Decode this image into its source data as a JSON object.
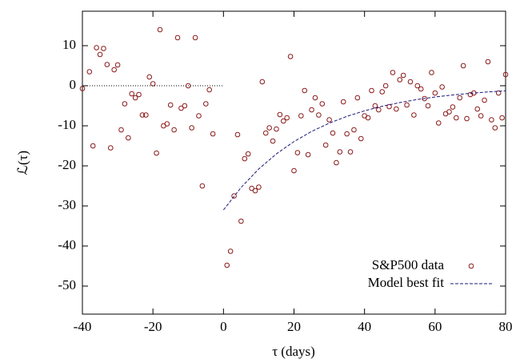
{
  "chart_data": {
    "type": "scatter",
    "x_label": "τ (days)",
    "y_label": "ℒ(τ)",
    "xlim": [
      -40,
      80
    ],
    "ylim": [
      -57,
      18.6
    ],
    "xticks": [
      -40,
      -20,
      0,
      20,
      40,
      60,
      80
    ],
    "yticks": [
      -50,
      -40,
      -30,
      -20,
      -10,
      0,
      10
    ],
    "legend_position": "lower right",
    "series": [
      {
        "name": "S&P500 data",
        "color": "#8b1a1a",
        "mode": "markers",
        "x": [
          -40,
          -38,
          -37,
          -36,
          -35,
          -34,
          -33,
          -32,
          -31,
          -30,
          -29,
          -28,
          -27,
          -26,
          -25,
          -24,
          -23,
          -22,
          -21,
          -20,
          -19,
          -18,
          -17,
          -16,
          -15,
          -14,
          -13,
          -12,
          -11,
          -10,
          -9,
          -8,
          -7,
          -6,
          -5,
          -4,
          -3,
          1,
          2,
          3,
          4,
          5,
          6,
          7,
          8,
          9,
          10,
          11,
          12,
          13,
          14,
          15,
          16,
          17,
          18,
          19,
          20,
          21,
          22,
          23,
          24,
          25,
          26,
          27,
          28,
          29,
          30,
          31,
          32,
          33,
          34,
          35,
          36,
          37,
          38,
          39,
          40,
          41,
          42,
          43,
          44,
          45,
          46,
          47,
          48,
          49,
          50,
          51,
          52,
          53,
          54,
          55,
          56,
          57,
          58,
          59,
          60,
          61,
          62,
          63,
          64,
          65,
          66,
          67,
          68,
          69,
          70,
          71,
          72,
          73,
          74,
          75,
          76,
          77,
          78,
          79,
          80
        ],
        "values": [
          -0.7,
          3.5,
          -15,
          9.5,
          7.8,
          9.3,
          5.3,
          -15.5,
          4,
          5.2,
          -11,
          -4.5,
          -13,
          -2,
          -3,
          -2.2,
          -7.3,
          -7.3,
          2.2,
          0.5,
          -16.8,
          14,
          -10,
          -9.5,
          -4.8,
          -11,
          12,
          -5.6,
          -5,
          0,
          -10.5,
          12,
          -7.5,
          -25,
          -4.5,
          -1,
          -12,
          -44.8,
          -41.3,
          -27.5,
          -12.2,
          -33.8,
          -18.2,
          -17,
          -25.6,
          -26.2,
          -25.3,
          1,
          -11.8,
          -10.5,
          -13.8,
          -10.8,
          -7.2,
          -8.8,
          -8,
          7.3,
          -21.2,
          -16.7,
          -7.5,
          -1.2,
          -17.2,
          -6,
          -3,
          -7.3,
          -4.5,
          -14.8,
          -8.5,
          -11.8,
          -19.2,
          -16.5,
          -4,
          -12,
          -16.5,
          -11,
          -3,
          -13.2,
          -7.5,
          -8,
          -1.2,
          -5,
          -6,
          -1.5,
          0,
          -5.2,
          3.3,
          -5.8,
          1.5,
          2.6,
          -4.8,
          1,
          -7.3,
          0,
          -0.8,
          -3.2,
          -5,
          3.3,
          -1.8,
          -9.3,
          -0.3,
          -7,
          -6.5,
          -5.3,
          -8,
          -3,
          5,
          -8.2,
          -2.2,
          -1.8,
          -5.8,
          -7.5,
          -3.6,
          6,
          -8.5,
          -10.5,
          -1.8,
          -8,
          2.8
        ]
      },
      {
        "name": "Model best fit",
        "color": "#1a1a7a",
        "mode": "dashed",
        "x": [
          0,
          5,
          10,
          15,
          20,
          25,
          30,
          35,
          40,
          45,
          50,
          55,
          60,
          65,
          70,
          75,
          80
        ],
        "values": [
          -31,
          -25.38,
          -20.78,
          -17.01,
          -13.93,
          -11.4,
          -9.34,
          -7.64,
          -6.26,
          -5.12,
          -4.2,
          -3.43,
          -2.81,
          -2.3,
          -1.89,
          -1.54,
          -1.26
        ]
      },
      {
        "color": "#000000",
        "mode": "dotted",
        "x": [
          -40,
          0
        ],
        "values": [
          0,
          0
        ]
      }
    ]
  }
}
